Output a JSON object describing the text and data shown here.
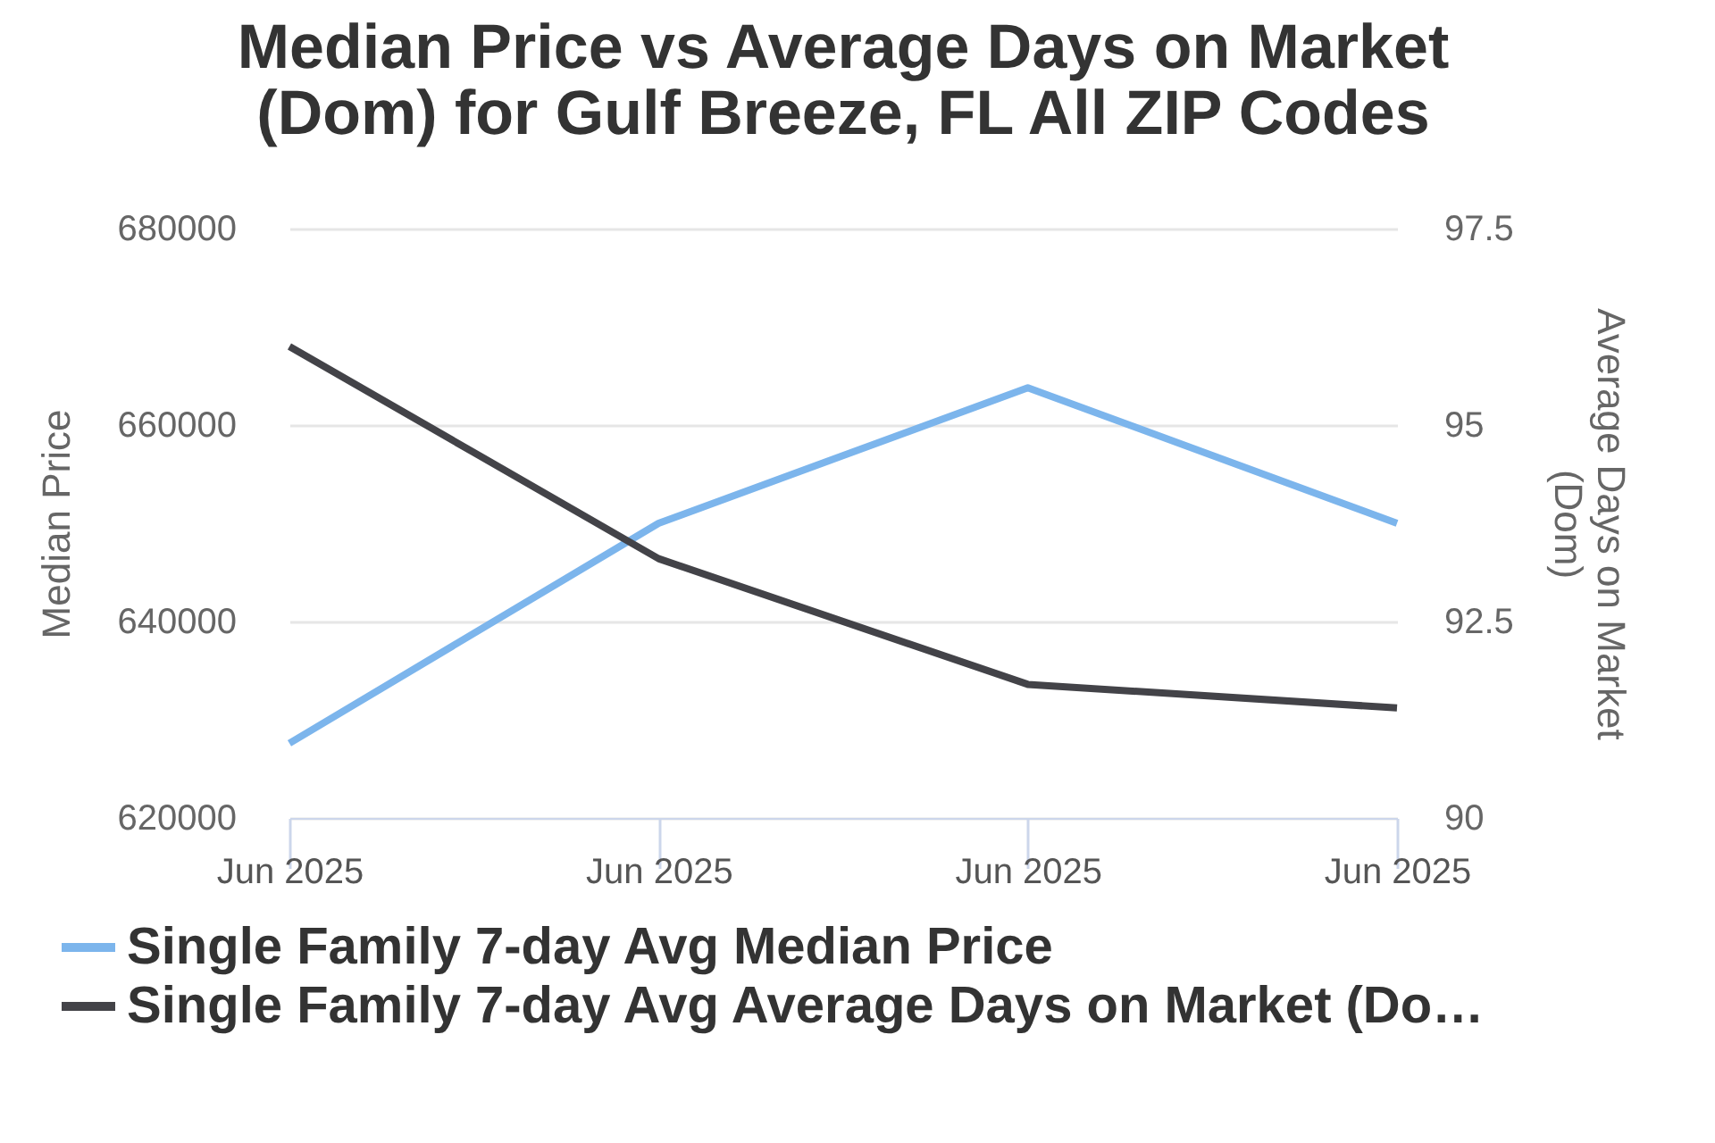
{
  "chart_data": {
    "type": "line",
    "title": "Median Price vs Average Days on Market (Dom) for Gulf Breeze, FL All ZIP Codes",
    "categories": [
      "Jun 2025",
      "Jun 2025",
      "Jun 2025",
      "Jun 2025"
    ],
    "ylabel": "Median Price",
    "y2label": "Average Days on Market (Dom)",
    "ylim": [
      620000,
      680000
    ],
    "yticks": [
      620000,
      640000,
      660000,
      680000
    ],
    "y2lim": [
      90,
      97.5
    ],
    "y2ticks": [
      90,
      92.5,
      95,
      97.5
    ],
    "series": [
      {
        "name": "Single Family 7-day Avg Median Price",
        "color": "#7cb5ec",
        "values": [
          627600,
          650000,
          663800,
          650000
        ]
      },
      {
        "name": "Single Family 7-day Avg Average Days on Market (Do…",
        "color": "#434348",
        "axis": "y2",
        "values": [
          96.0,
          93.3,
          91.7,
          91.4
        ]
      }
    ],
    "grid": "y",
    "legend": "bottom",
    "marker": "none",
    "line_style": "solid"
  }
}
